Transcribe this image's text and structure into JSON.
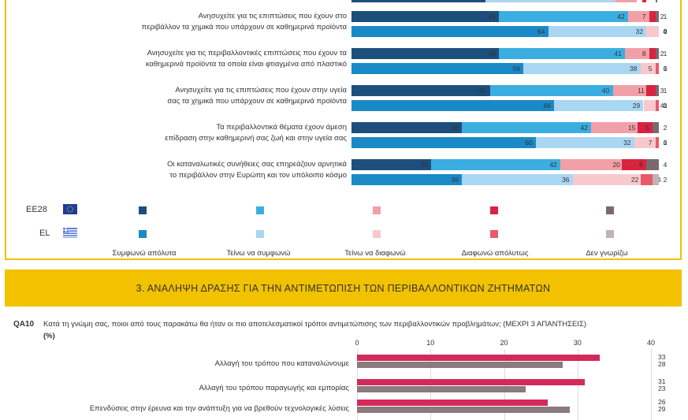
{
  "chart_data": [
    {
      "type": "bar",
      "stacked": true,
      "orientation": "horizontal",
      "series_names": [
        "Συμφωνώ απόλυτα",
        "Τείνω να συμφωνώ",
        "Τείνω να διαφωνώ",
        "Διαφωνώ απόλυτως",
        "Δεν γνωρίζω"
      ],
      "rows": [
        {
          "label": "Ανησυχείτε για τις επιπτώσεις που έχουν στο περιβάλλον τα χημικά που υπάρχουν σε καθημερινά προϊόντα",
          "EE28": [
            48,
            42,
            7,
            2,
            1
          ],
          "EL": [
            64,
            32,
            4,
            0,
            0
          ]
        },
        {
          "label": "Ανησυχείτε για τις περιβαλλοντικές επιπτώσεις που έχουν τα καθημερινά προϊόντα τα οποία είναι φτιαγμένα από πλαστικό",
          "EE28": [
            48,
            41,
            8,
            2,
            1
          ],
          "EL": [
            56,
            38,
            5,
            1,
            0
          ]
        },
        {
          "label": "Ανησυχείτε για τις επιπτώσεις που έχουν στην υγεία σας τα χημικά που υπάρχουν σε καθημερινά προϊόντα",
          "EE28": [
            45,
            40,
            11,
            3,
            1
          ],
          "EL": [
            66,
            29,
            4,
            1,
            0
          ]
        },
        {
          "label": "Τα περιβαλλοντικά θέματα έχουν άμεση επίδραση στην καθημερινή σας ζωή και στην υγεία σας",
          "EE28": [
            36,
            42,
            15,
            5,
            2
          ],
          "EL": [
            60,
            32,
            7,
            1,
            0
          ]
        },
        {
          "label": "Οι καταναλωτικές συνήθειες σας επηρεάζουν αρνητικά το περιβάλλον στην Ευρώπη και τον υπόλοιπο κόσμο",
          "EE28": [
            26,
            42,
            20,
            8,
            4
          ],
          "EL": [
            36,
            36,
            22,
            4,
            2
          ]
        }
      ],
      "colors": {
        "EE28": [
          "#1c4f7c",
          "#3aaee0",
          "#f2a0a8",
          "#d9233f",
          "#7a6a6e"
        ],
        "EL": [
          "#1a8ac6",
          "#a9d6f2",
          "#f7c9cd",
          "#e85a6a",
          "#c2b2b4"
        ]
      }
    },
    {
      "type": "bar",
      "orientation": "horizontal",
      "xlim": [
        0,
        40
      ],
      "ticks": [
        0,
        10,
        20,
        30,
        40
      ],
      "categories": [
        "Αλλαγή του τρόπου που καταναλώνουμε",
        "Αλλαγή του τρόπου παραγωγής και εμπορίας",
        "Επενδύσεις στην έρευνα και την ανάπτυξη για να βρεθούν τεχνολογικές λύσεις"
      ],
      "series": [
        {
          "name": "EE28",
          "values": [
            33,
            31,
            26
          ],
          "color": "#d42a5a"
        },
        {
          "name": "EL",
          "values": [
            28,
            23,
            29
          ],
          "color": "#8a7b7e"
        }
      ]
    }
  ],
  "legend": {
    "countries": [
      "EE28",
      "EL"
    ],
    "labels": [
      "Συμφωνώ απόλυτα",
      "Τείνω να συμφωνώ",
      "Τείνω να διαφωνώ",
      "Διαφωνώ απόλυτως",
      "Δεν γνωρίζω"
    ]
  },
  "section_banner": "3. ΑΝΑΛΗΨΗ ΔΡΑΣΗΣ ΓΙΑ ΤΗΝ ΑΝΤΙΜΕΤΩΠΙΣΗ ΤΩΝ ΠΕΡΙΒΑΛΛΟΝΤΙΚΩΝ ΖΗΤΗΜΑΤΩΝ",
  "question": {
    "code": "QA10",
    "text": "Κατά τη γνώμη σας, ποιοι από τους παρακάτω θα ήταν οι πιο αποτελεσματικοί τρόποι αντιμετώπισης των περιβαλλοντικών προβλημάτων; (ΜΕΧΡΙ 3 ΑΠΑΝΤΗΣΕΙΣ)",
    "unit": "(%)"
  }
}
